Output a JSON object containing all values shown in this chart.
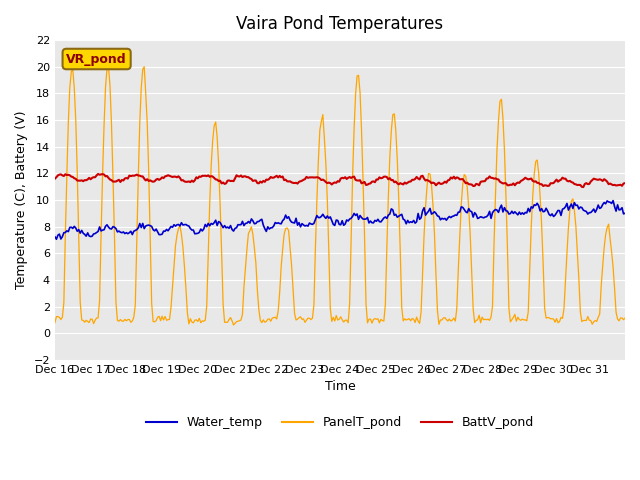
{
  "title": "Vaira Pond Temperatures",
  "ylabel": "Temperature (C), Battery (V)",
  "xlabel": "Time",
  "ylim": [
    -2,
    22
  ],
  "yticks": [
    -2,
    0,
    2,
    4,
    6,
    8,
    10,
    12,
    14,
    16,
    18,
    20,
    22
  ],
  "date_labels": [
    "Dec 16",
    "Dec 17",
    "Dec 18",
    "Dec 19",
    "Dec 20",
    "Dec 21",
    "Dec 22",
    "Dec 23",
    "Dec 24",
    "Dec 25",
    "Dec 26",
    "Dec 27",
    "Dec 28",
    "Dec 29",
    "Dec 30",
    "Dec 31"
  ],
  "annotation_text": "VR_pond",
  "annotation_color": "#8B0000",
  "annotation_bg": "#FFD700",
  "bg_color": "#E8E8E8",
  "water_color": "#0000CC",
  "panel_color": "#FFA500",
  "batt_color": "#CC0000",
  "legend_labels": [
    "Water_temp",
    "PanelT_pond",
    "BattV_pond"
  ],
  "peaks": {
    "0": 20,
    "1": 20,
    "2": 20,
    "3": 8,
    "4": 16,
    "5": 8,
    "6": 8,
    "7": 16.5,
    "8": 19.5,
    "9": 16.5,
    "10": 12,
    "11": 12,
    "12": 17.5,
    "13": 13,
    "14": 10,
    "15": 8
  }
}
